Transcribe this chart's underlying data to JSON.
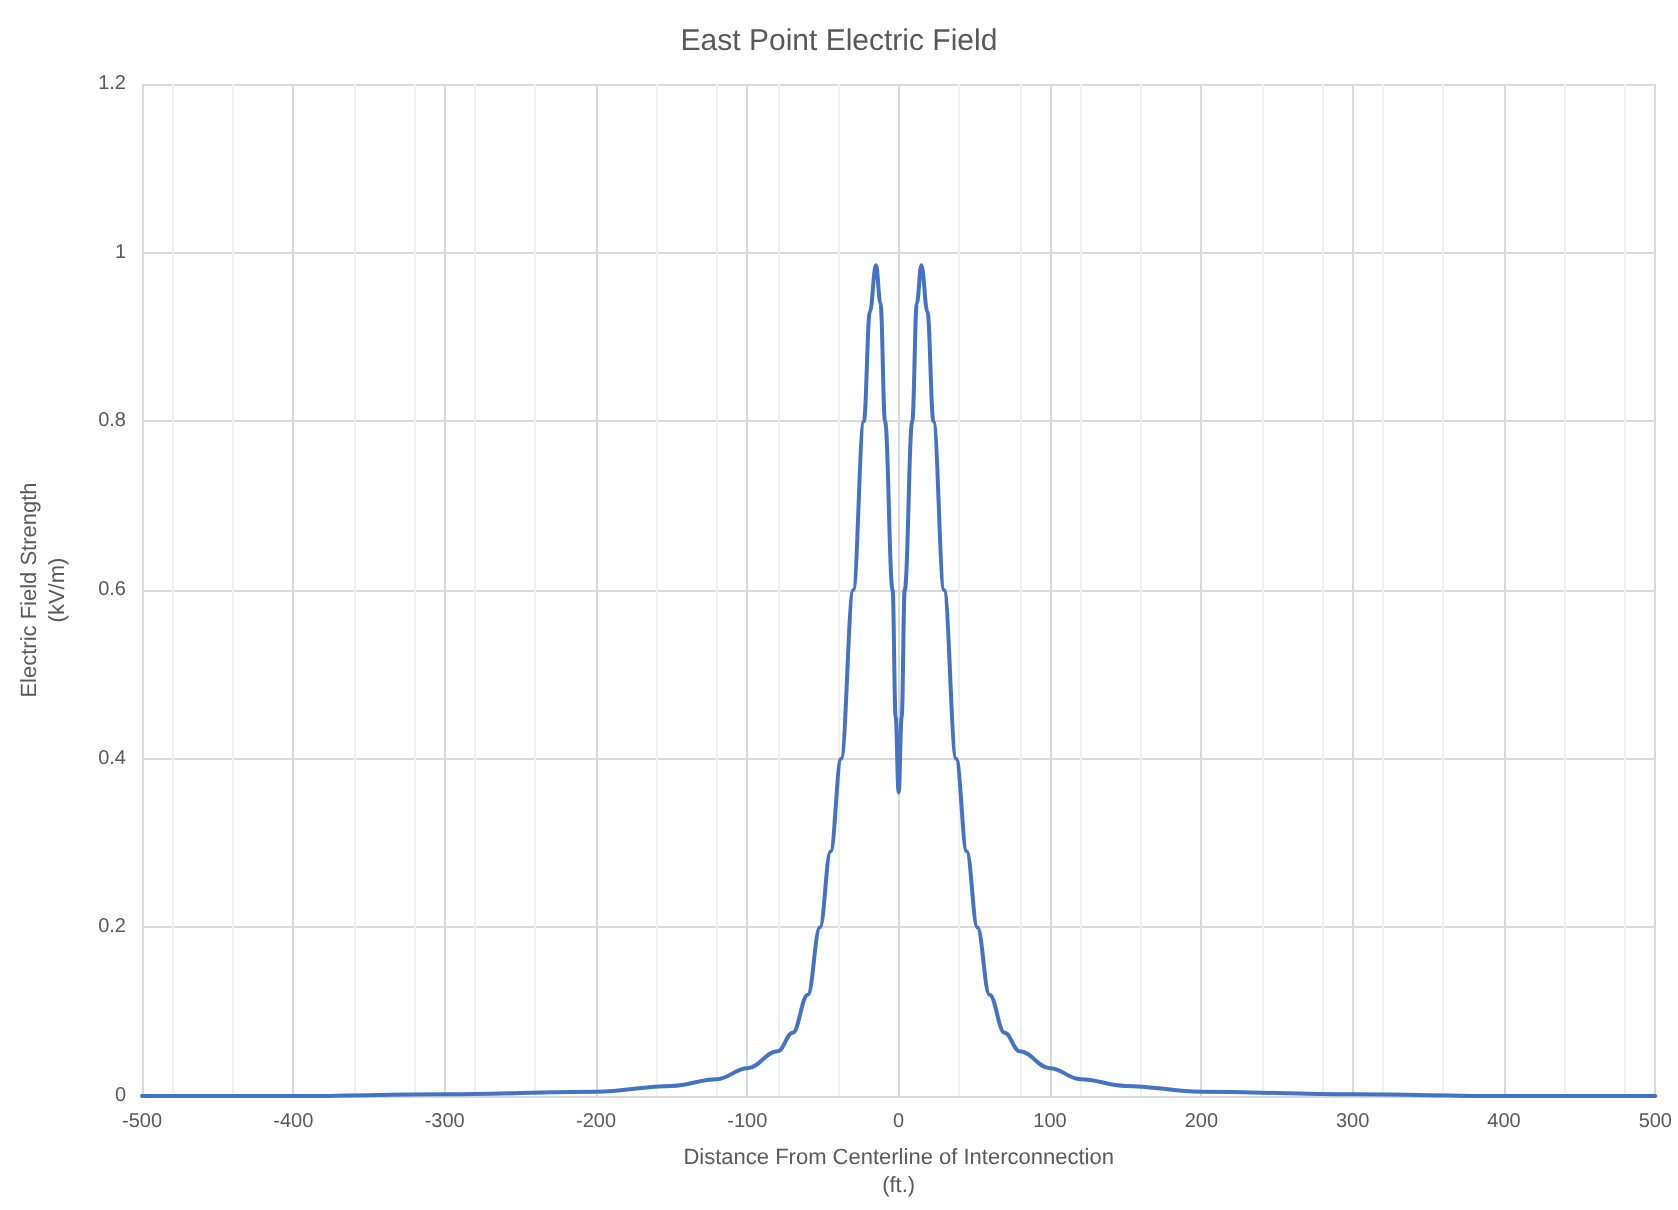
{
  "chart_data": {
    "type": "line",
    "title": "East Point Electric Field",
    "xlabel": "Distance From Centerline of Interconnection\n(ft.)",
    "ylabel": "Electric Field Strength\n(kV/m)",
    "series": [
      {
        "color": "#4472c4",
        "x": [
          -500,
          -400,
          -300,
          -200,
          -150,
          -120,
          -100,
          -80,
          -70,
          -60,
          -52,
          -45,
          -38,
          -30,
          -23,
          -19,
          -15,
          -12,
          -9,
          -4,
          -2,
          0,
          2,
          4,
          9,
          12,
          15,
          19,
          23,
          30,
          38,
          45,
          52,
          60,
          70,
          80,
          100,
          120,
          150,
          200,
          300,
          400,
          500
        ],
        "values": [
          0,
          0,
          0.002,
          0.005,
          0.012,
          0.02,
          0.033,
          0.053,
          0.075,
          0.12,
          0.2,
          0.29,
          0.4,
          0.6,
          0.8,
          0.93,
          0.985,
          0.94,
          0.8,
          0.6,
          0.45,
          0.36,
          0.45,
          0.6,
          0.8,
          0.94,
          0.985,
          0.93,
          0.8,
          0.6,
          0.4,
          0.29,
          0.2,
          0.12,
          0.075,
          0.053,
          0.033,
          0.02,
          0.012,
          0.005,
          0.002,
          0,
          0
        ]
      }
    ],
    "xlim": [
      -500,
      500
    ],
    "xticks": [
      -500,
      -400,
      -300,
      -200,
      -100,
      0,
      100,
      200,
      300,
      400,
      500
    ],
    "ylim": [
      0,
      1.2
    ],
    "yticks": [
      0,
      0.2,
      0.4,
      0.6,
      0.8,
      1,
      1.2
    ],
    "grid": true,
    "marker": "none",
    "line_style": "solid"
  }
}
